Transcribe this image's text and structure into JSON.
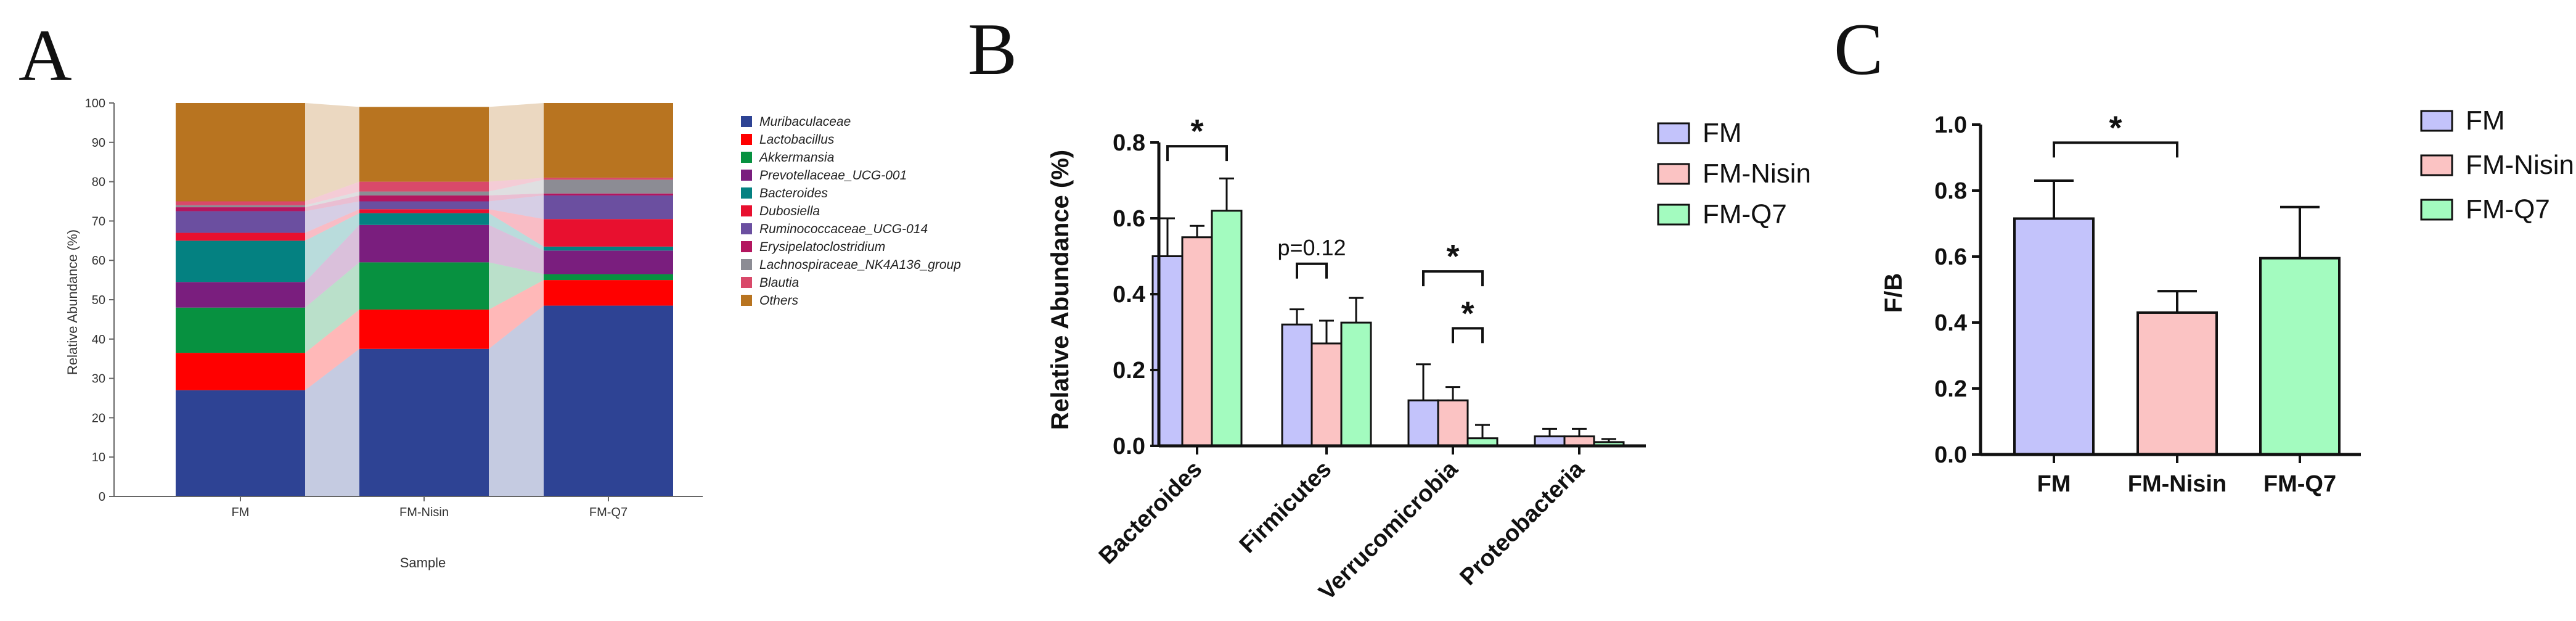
{
  "panels": {
    "a": "A",
    "b": "B",
    "c": "C"
  },
  "chart_data": [
    {
      "type": "stacked-area-bar",
      "panel": "A",
      "title": "",
      "xlabel": "Sample",
      "ylabel": "Relative Abundance (%)",
      "ylim": [
        0,
        100
      ],
      "yticks": [
        0,
        10,
        20,
        30,
        40,
        50,
        60,
        70,
        80,
        90,
        100
      ],
      "categories": [
        "FM",
        "FM-Nisin",
        "FM-Q7"
      ],
      "legend_position": "right",
      "series": [
        {
          "name": "Muribaculaceae",
          "color": "#2e4394",
          "values": [
            27,
            37.5,
            48.5
          ]
        },
        {
          "name": "Lactobacillus",
          "color": "#ff0000",
          "values": [
            9.5,
            10,
            6.5
          ]
        },
        {
          "name": "Akkermansia",
          "color": "#079140",
          "values": [
            11.5,
            12,
            1.5
          ]
        },
        {
          "name": "Prevotellaceae_UCG-001",
          "color": "#7a1e7e",
          "values": [
            6.5,
            9.5,
            6
          ]
        },
        {
          "name": "Bacteroides",
          "color": "#048181",
          "values": [
            10.5,
            3,
            1
          ]
        },
        {
          "name": "Dubosiella",
          "color": "#e8102f",
          "values": [
            2,
            1,
            7
          ]
        },
        {
          "name": "Ruminococcaceae_UCG-014",
          "color": "#6b4fa0",
          "values": [
            5.5,
            2,
            6
          ]
        },
        {
          "name": "Erysipelatoclostridium",
          "color": "#b3165f",
          "values": [
            1,
            1.5,
            0.5
          ]
        },
        {
          "name": "Lachnospiraceae_NK4A136_group",
          "color": "#8c8c94",
          "values": [
            0.5,
            1,
            3.5
          ]
        },
        {
          "name": "Blautia",
          "color": "#d9496a",
          "values": [
            1,
            2.5,
            0.5
          ]
        },
        {
          "name": "Others",
          "color": "#b87420",
          "values": [
            25,
            19,
            19
          ]
        }
      ]
    },
    {
      "type": "bar",
      "panel": "B",
      "ylabel": "Relative Abundance (%)",
      "ylim": [
        0,
        0.8
      ],
      "yticks": [
        "0.0",
        "0.2",
        "0.4",
        "0.6",
        "0.8"
      ],
      "categories": [
        "Bacteroides",
        "Firmicutes",
        "Verrucomicrobia",
        "Proteobacteria"
      ],
      "legend_position": "top-right",
      "series": [
        {
          "name": "FM",
          "color": "#c3c3fb",
          "values": [
            0.5,
            0.32,
            0.12,
            0.025
          ],
          "errors": [
            0.1,
            0.04,
            0.095,
            0.02
          ]
        },
        {
          "name": "FM-Nisin",
          "color": "#fbc3c3",
          "values": [
            0.55,
            0.27,
            0.12,
            0.025
          ],
          "errors": [
            0.03,
            0.06,
            0.035,
            0.02
          ]
        },
        {
          "name": "FM-Q7",
          "color": "#a3fbbf",
          "values": [
            0.62,
            0.325,
            0.02,
            0.01
          ],
          "errors": [
            0.085,
            0.065,
            0.035,
            0.008
          ]
        }
      ],
      "annotations": [
        {
          "text": "*",
          "category": "Bacteroides",
          "from": "FM",
          "to": "FM-Q7",
          "level": 0.79
        },
        {
          "text": "p=0.12",
          "category": "Firmicutes",
          "from": "FM",
          "to": "FM-Nisin",
          "level": 0.48
        },
        {
          "text": "*",
          "category": "Verrucomicrobia",
          "from": "FM",
          "to": "FM-Q7",
          "level": 0.46
        },
        {
          "text": "*",
          "category": "Verrucomicrobia",
          "from": "FM-Nisin",
          "to": "FM-Q7",
          "level": 0.31
        }
      ]
    },
    {
      "type": "bar",
      "panel": "C",
      "ylabel": "F/B",
      "ylim": [
        0,
        1.0
      ],
      "yticks": [
        "0.0",
        "0.2",
        "0.4",
        "0.6",
        "0.8",
        "1.0"
      ],
      "categories": [
        "FM",
        "FM-Nisin",
        "FM-Q7"
      ],
      "legend_position": "top-right",
      "series": [
        {
          "name": "F/B",
          "values": [
            0.715,
            0.43,
            0.595
          ],
          "errors": [
            0.115,
            0.065,
            0.155
          ],
          "colors": [
            "#c3c3fb",
            "#fbc3c3",
            "#a3fbbf"
          ]
        }
      ],
      "legend": [
        {
          "name": "FM",
          "color": "#c3c3fb"
        },
        {
          "name": "FM-Nisin",
          "color": "#fbc3c3"
        },
        {
          "name": "FM-Q7",
          "color": "#a3fbbf"
        }
      ],
      "annotations": [
        {
          "text": "*",
          "from": "FM",
          "to": "FM-Nisin",
          "level": 0.945
        }
      ]
    }
  ]
}
